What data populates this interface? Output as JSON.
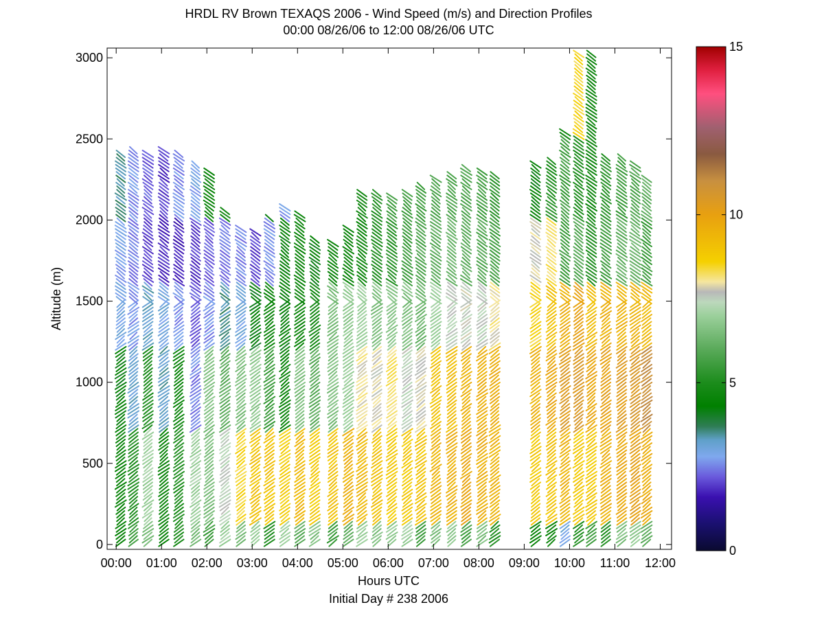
{
  "chart_data": {
    "type": "wind-profile",
    "title_line1": "HRDL RV Brown TEXAQS 2006 - Wind Speed (m/s) and Direction Profiles",
    "title_line2": "00:00 08/26/06 to 12:00 08/26/06  UTC",
    "xlabel": "Hours UTC",
    "xlabel2": "Initial Day # 238  2006",
    "ylabel": "Altitude (m)",
    "x_unit": "hours UTC",
    "xlim": [
      -0.2,
      12.25
    ],
    "ylim": [
      -30,
      3060
    ],
    "x_ticks": [
      0,
      1,
      2,
      3,
      4,
      5,
      6,
      7,
      8,
      9,
      10,
      11,
      12
    ],
    "x_tick_labels": [
      "00:00",
      "01:00",
      "02:00",
      "03:00",
      "04:00",
      "05:00",
      "06:00",
      "07:00",
      "08:00",
      "09:00",
      "10:00",
      "11:00",
      "12:00"
    ],
    "y_ticks": [
      0,
      500,
      1000,
      1500,
      2000,
      2500,
      3000
    ],
    "y_tick_labels": [
      "0",
      "500",
      "1000",
      "1500",
      "2000",
      "2500",
      "3000"
    ],
    "colorbar": {
      "label_ticks": [
        0,
        5,
        10,
        15
      ],
      "label_tick_text": [
        "0",
        "5",
        "10",
        "15"
      ],
      "min": 0,
      "max": 15,
      "stops": [
        {
          "v": 0.0,
          "c": "#0a0a30"
        },
        {
          "v": 0.8,
          "c": "#1a1070"
        },
        {
          "v": 1.6,
          "c": "#3a10b0"
        },
        {
          "v": 2.2,
          "c": "#6a5adc"
        },
        {
          "v": 2.8,
          "c": "#7fa8ee"
        },
        {
          "v": 3.3,
          "c": "#5fa0c8"
        },
        {
          "v": 3.7,
          "c": "#2f7d55"
        },
        {
          "v": 4.3,
          "c": "#008000"
        },
        {
          "v": 5.0,
          "c": "#1c8c1c"
        },
        {
          "v": 6.0,
          "c": "#5aaa5a"
        },
        {
          "v": 7.0,
          "c": "#9cd09c"
        },
        {
          "v": 7.4,
          "c": "#bcd8bc"
        },
        {
          "v": 7.7,
          "c": "#b8b8b8"
        },
        {
          "v": 8.0,
          "c": "#f5e6a0"
        },
        {
          "v": 8.6,
          "c": "#f5d000"
        },
        {
          "v": 10.0,
          "c": "#e8a010"
        },
        {
          "v": 11.0,
          "c": "#c89040"
        },
        {
          "v": 11.8,
          "c": "#8a5a40"
        },
        {
          "v": 12.6,
          "c": "#a06070"
        },
        {
          "v": 13.6,
          "c": "#ff4f7f"
        },
        {
          "v": 14.3,
          "c": "#e02040"
        },
        {
          "v": 15.0,
          "c": "#a00000"
        }
      ]
    },
    "profile_times": [
      0.1,
      0.38,
      0.7,
      1.05,
      1.38,
      1.75,
      2.05,
      2.4,
      2.75,
      3.07,
      3.38,
      3.72,
      4.05,
      4.38,
      4.78,
      5.12,
      5.42,
      5.75,
      6.08,
      6.42,
      6.72,
      7.05,
      7.4,
      7.72,
      8.07,
      8.35,
      9.25,
      9.6,
      9.9,
      10.2,
      10.48,
      10.8,
      11.15,
      11.45,
      11.7
    ],
    "profile_tops": [
      2420,
      2430,
      2410,
      2430,
      2410,
      2350,
      2300,
      2060,
      1960,
      1940,
      2030,
      2090,
      2050,
      1900,
      1870,
      1950,
      2170,
      2180,
      2150,
      2170,
      2210,
      2260,
      2280,
      2330,
      2300,
      2280,
      2350,
      2380,
      2560,
      3040,
      3040,
      2400,
      2390,
      2350,
      2260
    ],
    "segments": [
      {
        "z0": 0,
        "z1": 140,
        "speeds": [
          4.5,
          5.5,
          6.5,
          4.5,
          5.0,
          6.5,
          5.5,
          7.0,
          6.5,
          7.0,
          5.0,
          7.0,
          6.0,
          6.5,
          5.5,
          6.0,
          6.8,
          6.5,
          6.8,
          7.0,
          5.5,
          6.5,
          6.8,
          5.5,
          6.5,
          5.0,
          4.5,
          4.5,
          3.0,
          5.0,
          5.5,
          5.0,
          6.5,
          6.8,
          6.0
        ]
      },
      {
        "z0": 140,
        "z1": 700,
        "speeds": [
          4.5,
          5.0,
          7.0,
          4.5,
          5.0,
          7.0,
          6.5,
          7.5,
          8.5,
          9.0,
          9.0,
          8.7,
          9.3,
          8.8,
          9.0,
          9.5,
          9.3,
          9.0,
          8.8,
          8.8,
          9.0,
          9.4,
          9.5,
          9.8,
          9.6,
          9.5,
          8.8,
          9.0,
          9.5,
          8.8,
          8.8,
          9.5,
          9.8,
          10.0,
          9.6
        ]
      },
      {
        "z0": 700,
        "z1": 1200,
        "speeds": [
          4.3,
          3.2,
          5.0,
          3.3,
          4.6,
          2.5,
          6.5,
          6.0,
          6.5,
          6.8,
          5.5,
          4.5,
          6.5,
          6.0,
          6.5,
          7.0,
          8.0,
          7.8,
          8.2,
          7.5,
          7.8,
          9.0,
          9.2,
          9.5,
          9.6,
          9.6,
          9.5,
          9.8,
          10.3,
          10.5,
          9.8,
          10.0,
          10.3,
          10.5,
          11.0
        ]
      },
      {
        "z0": 1200,
        "z1": 1600,
        "speeds": [
          3.0,
          2.7,
          3.2,
          3.0,
          2.6,
          2.2,
          2.6,
          3.5,
          3.0,
          4.2,
          4.5,
          4.3,
          4.6,
          4.8,
          6.5,
          6.8,
          7.0,
          6.5,
          6.8,
          6.5,
          6.2,
          7.0,
          7.5,
          7.6,
          7.5,
          8.0,
          8.5,
          9.0,
          9.5,
          10.0,
          9.2,
          9.5,
          9.5,
          9.5,
          9.3
        ]
      },
      {
        "z0": 1600,
        "z1": 2000,
        "speeds": [
          2.8,
          2.5,
          2.0,
          1.8,
          1.7,
          1.9,
          2.2,
          2.4,
          2.5,
          2.0,
          2.6,
          4.4,
          4.5,
          4.3,
          4.5,
          4.5,
          4.6,
          5.0,
          5.2,
          5.5,
          5.8,
          6.0,
          6.2,
          6.0,
          5.8,
          5.6,
          7.8,
          8.2,
          5.5,
          5.8,
          5.0,
          5.5,
          6.0,
          6.2,
          5.5
        ]
      },
      {
        "z0": 2000,
        "z1": 2500,
        "speeds": [
          3.5,
          2.6,
          2.2,
          1.9,
          2.6,
          2.8,
          4.4,
          4.8,
          2.2,
          3.4,
          4.0,
          2.7,
          4.5,
          4.5,
          4.5,
          4.5,
          4.7,
          5.0,
          5.5,
          5.5,
          5.5,
          5.7,
          5.7,
          5.8,
          5.6,
          5.2,
          4.3,
          5.0,
          5.5,
          5.0,
          4.6,
          5.2,
          5.5,
          5.8,
          6.0
        ]
      },
      {
        "z0": 2500,
        "z1": 3060,
        "speeds": [
          4.5,
          4.5,
          4.5,
          4.5,
          4.5,
          4.5,
          4.5,
          4.5,
          4.5,
          4.5,
          4.5,
          4.5,
          4.5,
          4.5,
          4.5,
          4.5,
          4.5,
          4.5,
          4.5,
          4.5,
          4.5,
          4.5,
          4.5,
          4.5,
          4.5,
          4.5,
          4.5,
          4.5,
          4.5,
          8.5,
          4.6,
          4.5,
          4.5,
          4.5,
          4.5
        ]
      }
    ]
  }
}
